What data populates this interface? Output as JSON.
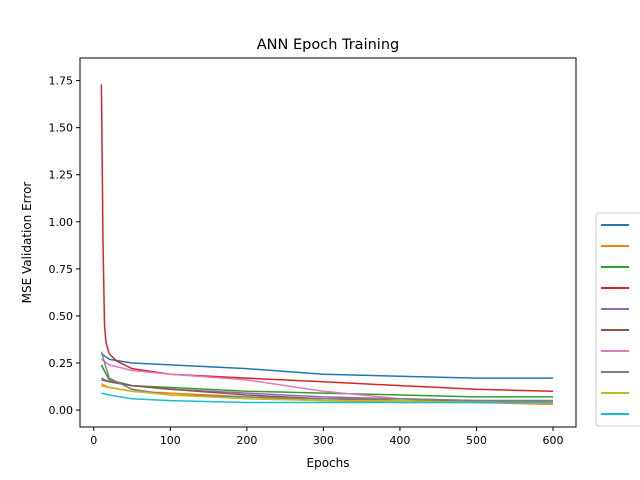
{
  "chart_data": {
    "type": "line",
    "title": "ANN Epoch Training",
    "xlabel": "Epochs",
    "ylabel": "MSE Validation Error",
    "xlim": [
      -18,
      630
    ],
    "ylim": [
      -0.09,
      1.87
    ],
    "xticks": [
      0,
      100,
      200,
      300,
      400,
      500,
      600
    ],
    "yticks": [
      0.0,
      0.25,
      0.5,
      0.75,
      1.0,
      1.25,
      1.5,
      1.75
    ],
    "xtick_labels": [
      "0",
      "100",
      "200",
      "300",
      "400",
      "500",
      "600"
    ],
    "ytick_labels": [
      "0.00",
      "0.25",
      "0.50",
      "0.75",
      "1.00",
      "1.25",
      "1.50",
      "1.75"
    ],
    "grid": false,
    "legend_position": "outside right, lower",
    "series": [
      {
        "color": "#1f77b4",
        "x": [
          10,
          20,
          50,
          100,
          200,
          300,
          400,
          500,
          600
        ],
        "y": [
          0.3,
          0.27,
          0.25,
          0.24,
          0.22,
          0.19,
          0.18,
          0.17,
          0.17
        ]
      },
      {
        "color": "#ff7f0e",
        "x": [
          10,
          20,
          50,
          100,
          200,
          300,
          400,
          500,
          600
        ],
        "y": [
          0.13,
          0.12,
          0.1,
          0.09,
          0.07,
          0.05,
          0.04,
          0.04,
          0.03
        ]
      },
      {
        "color": "#2ca02c",
        "x": [
          10,
          20,
          50,
          100,
          200,
          300,
          400,
          500,
          600
        ],
        "y": [
          0.24,
          0.16,
          0.13,
          0.12,
          0.1,
          0.09,
          0.08,
          0.07,
          0.07
        ]
      },
      {
        "color": "#d62728",
        "x": [
          10,
          12,
          14,
          16,
          20,
          30,
          50,
          100,
          200,
          300,
          400,
          500,
          600
        ],
        "y": [
          1.73,
          0.9,
          0.45,
          0.36,
          0.3,
          0.26,
          0.22,
          0.19,
          0.17,
          0.15,
          0.13,
          0.11,
          0.1
        ]
      },
      {
        "color": "#9467bd",
        "x": [
          10,
          20,
          50,
          100,
          200,
          300,
          400,
          500,
          600
        ],
        "y": [
          0.17,
          0.15,
          0.13,
          0.11,
          0.09,
          0.07,
          0.06,
          0.05,
          0.05
        ]
      },
      {
        "color": "#8c564b",
        "x": [
          10,
          20,
          50,
          100,
          200,
          300,
          400,
          500,
          600
        ],
        "y": [
          0.16,
          0.15,
          0.13,
          0.11,
          0.08,
          0.06,
          0.05,
          0.05,
          0.04
        ]
      },
      {
        "color": "#e377c2",
        "x": [
          10,
          20,
          50,
          100,
          200,
          300,
          400,
          500,
          600
        ],
        "y": [
          0.27,
          0.24,
          0.21,
          0.19,
          0.16,
          0.1,
          0.06,
          0.05,
          0.05
        ]
      },
      {
        "color": "#7f7f7f",
        "x": [
          10,
          20,
          50,
          100,
          200,
          300,
          400,
          500,
          600
        ],
        "y": [
          0.31,
          0.17,
          0.11,
          0.08,
          0.07,
          0.06,
          0.06,
          0.05,
          0.05
        ]
      },
      {
        "color": "#bcbd22",
        "x": [
          10,
          20,
          50,
          100,
          200,
          300,
          400,
          500,
          600
        ],
        "y": [
          0.14,
          0.12,
          0.1,
          0.08,
          0.06,
          0.05,
          0.05,
          0.04,
          0.04
        ]
      },
      {
        "color": "#17becf",
        "x": [
          10,
          20,
          50,
          100,
          200,
          300,
          400,
          500,
          600
        ],
        "y": [
          0.09,
          0.08,
          0.06,
          0.05,
          0.04,
          0.04,
          0.04,
          0.04,
          0.04
        ]
      }
    ]
  }
}
